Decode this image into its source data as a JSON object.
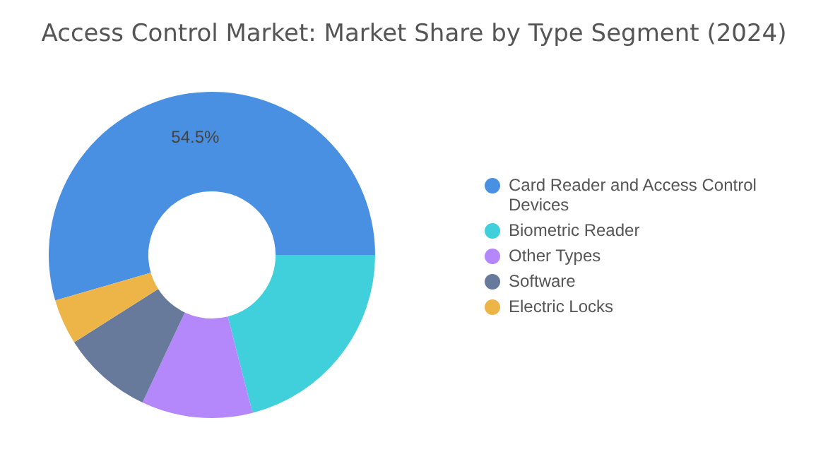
{
  "chart_data": {
    "type": "donut",
    "title": "Access Control Market: Market Share by Type Segment (2024)",
    "categories": [
      "Card Reader and Access Control Devices",
      "Biometric Reader",
      "Other Types",
      "Software",
      "Electric Locks"
    ],
    "values": [
      54.5,
      21,
      11,
      9,
      4.5
    ],
    "value_labels": [
      "54.5%",
      null,
      null,
      null,
      null
    ],
    "colors": [
      "#4a90e2",
      "#3fd0db",
      "#b487fb",
      "#677a9c",
      "#edb548"
    ],
    "legend": "right"
  }
}
